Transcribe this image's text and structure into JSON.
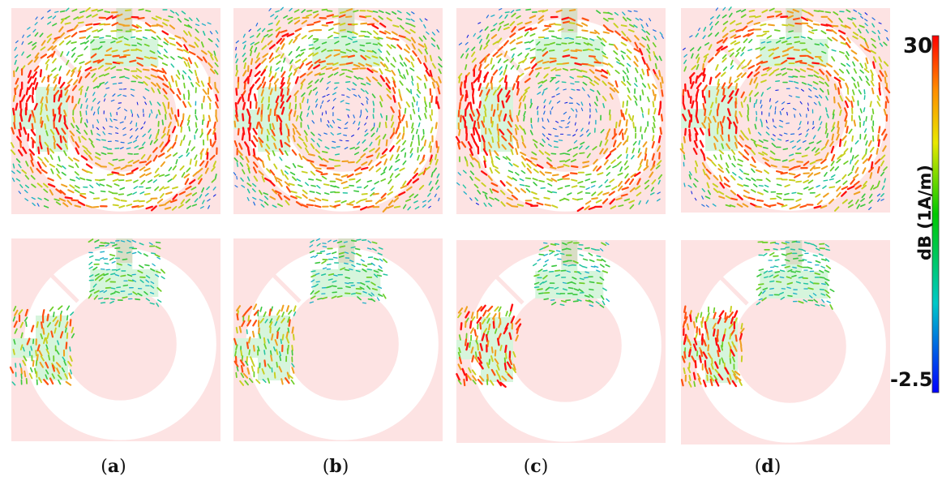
{
  "figure": {
    "panels": [
      {
        "label": "a"
      },
      {
        "label": "b"
      },
      {
        "label": "c"
      },
      {
        "label": "d"
      }
    ],
    "colorbar": {
      "max": "30",
      "min": "-2.5",
      "title": "dB (1A/m)",
      "gradient": [
        "#ff0000",
        "#ff8000",
        "#ffff00",
        "#00cc00",
        "#00c8c8",
        "#0000ff"
      ]
    },
    "colors": {
      "substrate": "#fde3e3",
      "feedline": "#d6f5dc",
      "port": "#d9ddc6"
    }
  }
}
